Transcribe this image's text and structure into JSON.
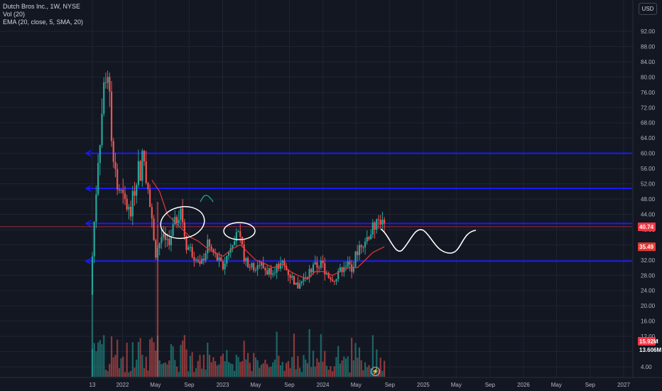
{
  "legend": {
    "symbol": "Dutch Bros Inc., 1W, NYSE",
    "volume": "Vol (20)",
    "ema": "EMA (20, close, 5, SMA, 20)"
  },
  "currency_button": "USD",
  "flash_icon": "lightning-icon",
  "colors": {
    "background": "#131722",
    "up": "#26a69a",
    "down": "#ef5350",
    "ema": "#e53935",
    "levels": "#1a1aff",
    "drawing": "#ffffff",
    "current_price_line": "#f23645"
  },
  "price_labels": {
    "last_price": "40.74",
    "ema_value": "35.49",
    "volume_value": "15.92M",
    "volume_avg": "13.606M"
  },
  "chart_data": {
    "type": "candlestick",
    "title": "Dutch Bros Inc., 1W, NYSE",
    "y_ticks": [
      "92.00",
      "88.00",
      "84.00",
      "80.00",
      "76.00",
      "72.00",
      "68.00",
      "64.00",
      "60.00",
      "56.00",
      "52.00",
      "48.00",
      "44.00",
      "40.00",
      "36.00",
      "32.00",
      "28.00",
      "24.00",
      "20.00",
      "16.00",
      "12.00",
      "8.00",
      "4.00"
    ],
    "y_ticks_values": [
      92,
      88,
      84,
      80,
      76,
      72,
      68,
      64,
      60,
      56,
      52,
      48,
      44,
      40,
      36,
      32,
      28,
      24,
      20,
      16,
      12,
      8,
      4
    ],
    "x_ticks": [
      "13",
      "2022",
      "May",
      "Sep",
      "2023",
      "May",
      "Sep",
      "2024",
      "May",
      "Sep",
      "2025",
      "May",
      "Sep",
      "2026",
      "May",
      "Sep",
      "2027"
    ],
    "x_ticks_dates": [
      "2021-09-13",
      "2022-01-01",
      "2022-05-01",
      "2022-09-01",
      "2023-01-01",
      "2023-05-01",
      "2023-09-01",
      "2024-01-01",
      "2024-05-01",
      "2024-09-01",
      "2025-01-01",
      "2025-05-01",
      "2025-09-01",
      "2026-01-01",
      "2026-05-01",
      "2026-09-01",
      "2027-01-01"
    ],
    "ylim": [
      0,
      96
    ],
    "grid": true,
    "last_price": 40.74,
    "ema_last": 35.49,
    "horizontal_levels": [
      60.0,
      50.8,
      41.6,
      31.7
    ],
    "price_path": [
      [
        "2021-09-13",
        33
      ],
      [
        "2021-10-04",
        60
      ],
      [
        "2021-11-01",
        82
      ],
      [
        "2021-11-22",
        66
      ],
      [
        "2021-12-13",
        52
      ],
      [
        "2022-01-03",
        48
      ],
      [
        "2022-01-31",
        44
      ],
      [
        "2022-02-21",
        56
      ],
      [
        "2022-03-21",
        58
      ],
      [
        "2022-04-11",
        46
      ],
      [
        "2022-05-02",
        34
      ],
      [
        "2022-05-23",
        38
      ],
      [
        "2022-06-13",
        36
      ],
      [
        "2022-07-04",
        40
      ],
      [
        "2022-08-01",
        46
      ],
      [
        "2022-08-22",
        36
      ],
      [
        "2022-09-12",
        34
      ],
      [
        "2022-10-10",
        30
      ],
      [
        "2022-11-07",
        36
      ],
      [
        "2022-12-05",
        33
      ],
      [
        "2023-01-02",
        30
      ],
      [
        "2023-01-30",
        36
      ],
      [
        "2023-02-20",
        40
      ],
      [
        "2023-03-20",
        33
      ],
      [
        "2023-04-17",
        30
      ],
      [
        "2023-05-15",
        31
      ],
      [
        "2023-06-12",
        29
      ],
      [
        "2023-07-10",
        30
      ],
      [
        "2023-08-07",
        31
      ],
      [
        "2023-09-04",
        28
      ],
      [
        "2023-10-02",
        25
      ],
      [
        "2023-10-30",
        28
      ],
      [
        "2023-11-27",
        30
      ],
      [
        "2023-12-25",
        31
      ],
      [
        "2024-01-22",
        28
      ],
      [
        "2024-02-19",
        27
      ],
      [
        "2024-03-18",
        31
      ],
      [
        "2024-04-15",
        30
      ],
      [
        "2024-05-13",
        36
      ],
      [
        "2024-06-10",
        38
      ],
      [
        "2024-07-08",
        41
      ],
      [
        "2024-07-29",
        42.5
      ],
      [
        "2024-08-12",
        40.74
      ]
    ],
    "ema_path": [
      [
        "2022-04-18",
        53
      ],
      [
        "2022-05-16",
        50
      ],
      [
        "2022-06-13",
        44
      ],
      [
        "2022-07-11",
        42
      ],
      [
        "2022-08-08",
        40
      ],
      [
        "2022-09-05",
        38
      ],
      [
        "2022-10-03",
        37
      ],
      [
        "2022-11-07",
        35
      ],
      [
        "2022-12-05",
        34
      ],
      [
        "2023-01-02",
        33
      ],
      [
        "2023-02-06",
        35
      ],
      [
        "2023-03-06",
        36
      ],
      [
        "2023-04-03",
        34
      ],
      [
        "2023-05-01",
        32
      ],
      [
        "2023-06-05",
        31
      ],
      [
        "2023-07-03",
        30
      ],
      [
        "2023-08-07",
        31
      ],
      [
        "2023-09-04",
        29
      ],
      [
        "2023-10-02",
        28
      ],
      [
        "2023-11-06",
        27
      ],
      [
        "2023-12-04",
        29
      ],
      [
        "2024-01-01",
        29
      ],
      [
        "2024-02-05",
        28
      ],
      [
        "2024-03-04",
        29
      ],
      [
        "2024-04-01",
        30
      ],
      [
        "2024-05-06",
        30
      ],
      [
        "2024-06-03",
        32
      ],
      [
        "2024-07-01",
        34
      ],
      [
        "2024-08-12",
        35.49
      ]
    ],
    "volume_note": "volume histogram in lower pane, last bar 15.92M, 20-period average 13.606M"
  }
}
